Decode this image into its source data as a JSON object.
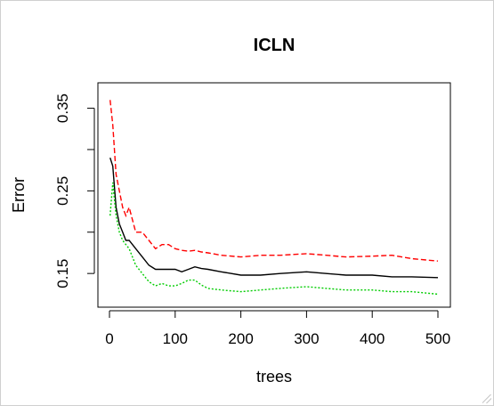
{
  "chart_data": {
    "type": "line",
    "title": "ICLN",
    "xlabel": "trees",
    "ylabel": "Error",
    "xlim": [
      0,
      500
    ],
    "ylim": [
      0.12,
      0.37
    ],
    "x_ticks": [
      0,
      100,
      200,
      300,
      400,
      500
    ],
    "x_tick_labels": [
      "0",
      "100",
      "200",
      "300",
      "400",
      "500"
    ],
    "y_ticks": [
      0.15,
      0.2,
      0.25,
      0.3,
      0.35
    ],
    "y_tick_labels": [
      "0.15",
      "",
      "0.25",
      "",
      "0.35"
    ],
    "grid": false,
    "legend": "none",
    "series": [
      {
        "color": "#000000",
        "dash": "solid",
        "x": [
          1,
          5,
          10,
          15,
          20,
          25,
          30,
          40,
          50,
          60,
          70,
          80,
          90,
          100,
          110,
          120,
          130,
          140,
          150,
          170,
          200,
          230,
          260,
          300,
          330,
          360,
          400,
          430,
          460,
          500
        ],
        "y": [
          0.29,
          0.28,
          0.23,
          0.21,
          0.2,
          0.19,
          0.19,
          0.18,
          0.17,
          0.16,
          0.155,
          0.155,
          0.155,
          0.155,
          0.152,
          0.155,
          0.158,
          0.156,
          0.155,
          0.152,
          0.148,
          0.148,
          0.15,
          0.152,
          0.15,
          0.148,
          0.148,
          0.146,
          0.146,
          0.145
        ]
      },
      {
        "color": "#ff0000",
        "dash": "dashed",
        "x": [
          1,
          5,
          10,
          15,
          20,
          25,
          30,
          40,
          50,
          60,
          70,
          80,
          90,
          100,
          110,
          120,
          130,
          140,
          150,
          170,
          200,
          230,
          260,
          300,
          330,
          360,
          400,
          430,
          460,
          500
        ],
        "y": [
          0.36,
          0.33,
          0.27,
          0.25,
          0.23,
          0.22,
          0.23,
          0.2,
          0.2,
          0.19,
          0.18,
          0.185,
          0.185,
          0.18,
          0.178,
          0.177,
          0.178,
          0.176,
          0.175,
          0.172,
          0.17,
          0.172,
          0.172,
          0.174,
          0.172,
          0.17,
          0.171,
          0.172,
          0.168,
          0.165
        ]
      },
      {
        "color": "#00cc00",
        "dash": "dotted",
        "x": [
          1,
          5,
          10,
          15,
          20,
          25,
          30,
          40,
          50,
          60,
          70,
          80,
          90,
          100,
          110,
          120,
          130,
          140,
          150,
          170,
          200,
          230,
          260,
          300,
          330,
          360,
          400,
          430,
          460,
          500
        ],
        "y": [
          0.22,
          0.26,
          0.22,
          0.2,
          0.19,
          0.185,
          0.18,
          0.16,
          0.15,
          0.14,
          0.135,
          0.138,
          0.135,
          0.135,
          0.138,
          0.142,
          0.142,
          0.136,
          0.132,
          0.13,
          0.128,
          0.13,
          0.132,
          0.134,
          0.132,
          0.13,
          0.13,
          0.128,
          0.128,
          0.125
        ]
      }
    ]
  }
}
